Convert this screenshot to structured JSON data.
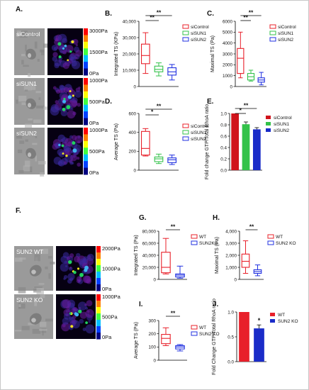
{
  "panel_letters": {
    "A": "A.",
    "B": "B.",
    "C": "C.",
    "D": "D.",
    "E": "E.",
    "F": "F.",
    "G": "G.",
    "H": "H.",
    "I": "I.",
    "J": "J."
  },
  "images": {
    "A_rows": [
      "siControl",
      "siSUN1",
      "siSUN2"
    ],
    "A_scales": [
      [
        "3000Pa",
        "1500Pa",
        "0Pa"
      ],
      [
        "1000Pa",
        "500Pa",
        "0Pa"
      ],
      [
        "1000Pa",
        "500Pa",
        "0Pa"
      ]
    ],
    "F_rows": [
      "SUN2 WT",
      "SUN2 KO"
    ],
    "F_scales": [
      [
        "2000Pa",
        "1000Pa",
        "0Pa"
      ],
      [
        "1000Pa",
        "500Pa",
        "0Pa"
      ]
    ]
  },
  "colors": {
    "red": "#e8202a",
    "green": "#33c24a",
    "blue": "#2030e0",
    "darkred": "#d0141c",
    "darkblue": "#1a2cc8"
  },
  "chart_data": [
    {
      "id": "B",
      "type": "box",
      "ylabel": "Integrated TS (KPa)",
      "ylim": [
        0,
        40000
      ],
      "yticks": [
        "0",
        "10,000",
        "20,000",
        "30,000",
        "40,000"
      ],
      "series": [
        {
          "name": "siControl",
          "min": 8000,
          "q1": 14000,
          "median": 19000,
          "q3": 26000,
          "max": 33000
        },
        {
          "name": "siSUN1",
          "min": 6500,
          "q1": 9000,
          "median": 10500,
          "q3": 12500,
          "max": 14500
        },
        {
          "name": "siSUN2",
          "min": 4000,
          "q1": 7000,
          "median": 9000,
          "q3": 11500,
          "max": 13500
        }
      ],
      "significance": [
        "**",
        "**"
      ]
    },
    {
      "id": "C",
      "type": "box",
      "ylabel": "Maximal TS (Pa)",
      "ylim": [
        0,
        6000
      ],
      "yticks": [
        "0",
        "1000",
        "2000",
        "3000",
        "4000",
        "5000",
        "6000"
      ],
      "series": [
        {
          "name": "siControl",
          "min": 800,
          "q1": 1200,
          "median": 2600,
          "q3": 3500,
          "max": 5000
        },
        {
          "name": "siSUN1",
          "min": 500,
          "q1": 600,
          "median": 900,
          "q3": 1200,
          "max": 1500
        },
        {
          "name": "siSUN2",
          "min": 150,
          "q1": 400,
          "median": 600,
          "q3": 800,
          "max": 1300
        }
      ],
      "significance": [
        "**",
        "**"
      ]
    },
    {
      "id": "D",
      "type": "box",
      "ylabel": "Average TS (Pa)",
      "ylim": [
        0,
        600
      ],
      "yticks": [
        "0",
        "200",
        "400",
        "600"
      ],
      "series": [
        {
          "name": "siControl",
          "min": 150,
          "q1": 160,
          "median": 230,
          "q3": 410,
          "max": 440
        },
        {
          "name": "siSUN1",
          "min": 70,
          "q1": 90,
          "median": 120,
          "q3": 140,
          "max": 170
        },
        {
          "name": "siSUN2",
          "min": 60,
          "q1": 80,
          "median": 110,
          "q3": 130,
          "max": 160
        }
      ],
      "significance": [
        "**",
        "*"
      ]
    },
    {
      "id": "E",
      "type": "bar",
      "ylabel": "Fold change GTP/Total RhoA ratio",
      "ylim": [
        0,
        1.0
      ],
      "yticks": [
        "0.0",
        "0.2",
        "0.4",
        "0.6",
        "0.8",
        "1.0"
      ],
      "categories": [
        "siControl",
        "siSUN1",
        "siSUN2"
      ],
      "values": [
        1.0,
        0.81,
        0.72
      ],
      "errors": [
        0,
        0.04,
        0.03
      ],
      "significance": [
        "**",
        "*"
      ]
    },
    {
      "id": "G",
      "type": "box",
      "ylabel": "Integrated TS (Pa)",
      "ylim": [
        0,
        80000
      ],
      "yticks": [
        "0",
        "20,000",
        "40,000",
        "60,000",
        "80,000"
      ],
      "series": [
        {
          "name": "WT",
          "min": 9000,
          "q1": 11000,
          "median": 20000,
          "q3": 45000,
          "max": 68000
        },
        {
          "name": "SUN2KO",
          "min": 2000,
          "q1": 4000,
          "median": 7000,
          "q3": 9000,
          "max": 22000
        }
      ],
      "significance": [
        "**"
      ]
    },
    {
      "id": "H",
      "type": "box",
      "ylabel": "Maximal TS (Pa)",
      "ylim": [
        0,
        4000
      ],
      "yticks": [
        "0",
        "1,000",
        "2,000",
        "3,000",
        "4,000"
      ],
      "series": [
        {
          "name": "WT",
          "min": 500,
          "q1": 1000,
          "median": 1500,
          "q3": 2100,
          "max": 3200
        },
        {
          "name": "SUN2 KO",
          "min": 300,
          "q1": 500,
          "median": 650,
          "q3": 800,
          "max": 1200
        }
      ],
      "significance": [
        "**"
      ]
    },
    {
      "id": "I",
      "type": "box",
      "ylabel": "Average TS (Pa)",
      "ylim": [
        0,
        300
      ],
      "yticks": [
        "0",
        "100",
        "200",
        "300"
      ],
      "series": [
        {
          "name": "WT",
          "min": 110,
          "q1": 125,
          "median": 165,
          "q3": 195,
          "max": 245
        },
        {
          "name": "SUN2 KO",
          "min": 70,
          "q1": 85,
          "median": 100,
          "q3": 110,
          "max": 118
        }
      ],
      "significance": [
        "**"
      ]
    },
    {
      "id": "J",
      "type": "bar",
      "ylabel": "Fold Change GTP/Total RhoA ratio",
      "ylim": [
        0,
        1.0
      ],
      "yticks": [
        "0.0",
        "0.5",
        "1.0"
      ],
      "categories": [
        "WT",
        "SUN2 KO"
      ],
      "values": [
        1.0,
        0.67
      ],
      "errors": [
        0,
        0.07
      ],
      "significance": [
        "*"
      ]
    }
  ]
}
